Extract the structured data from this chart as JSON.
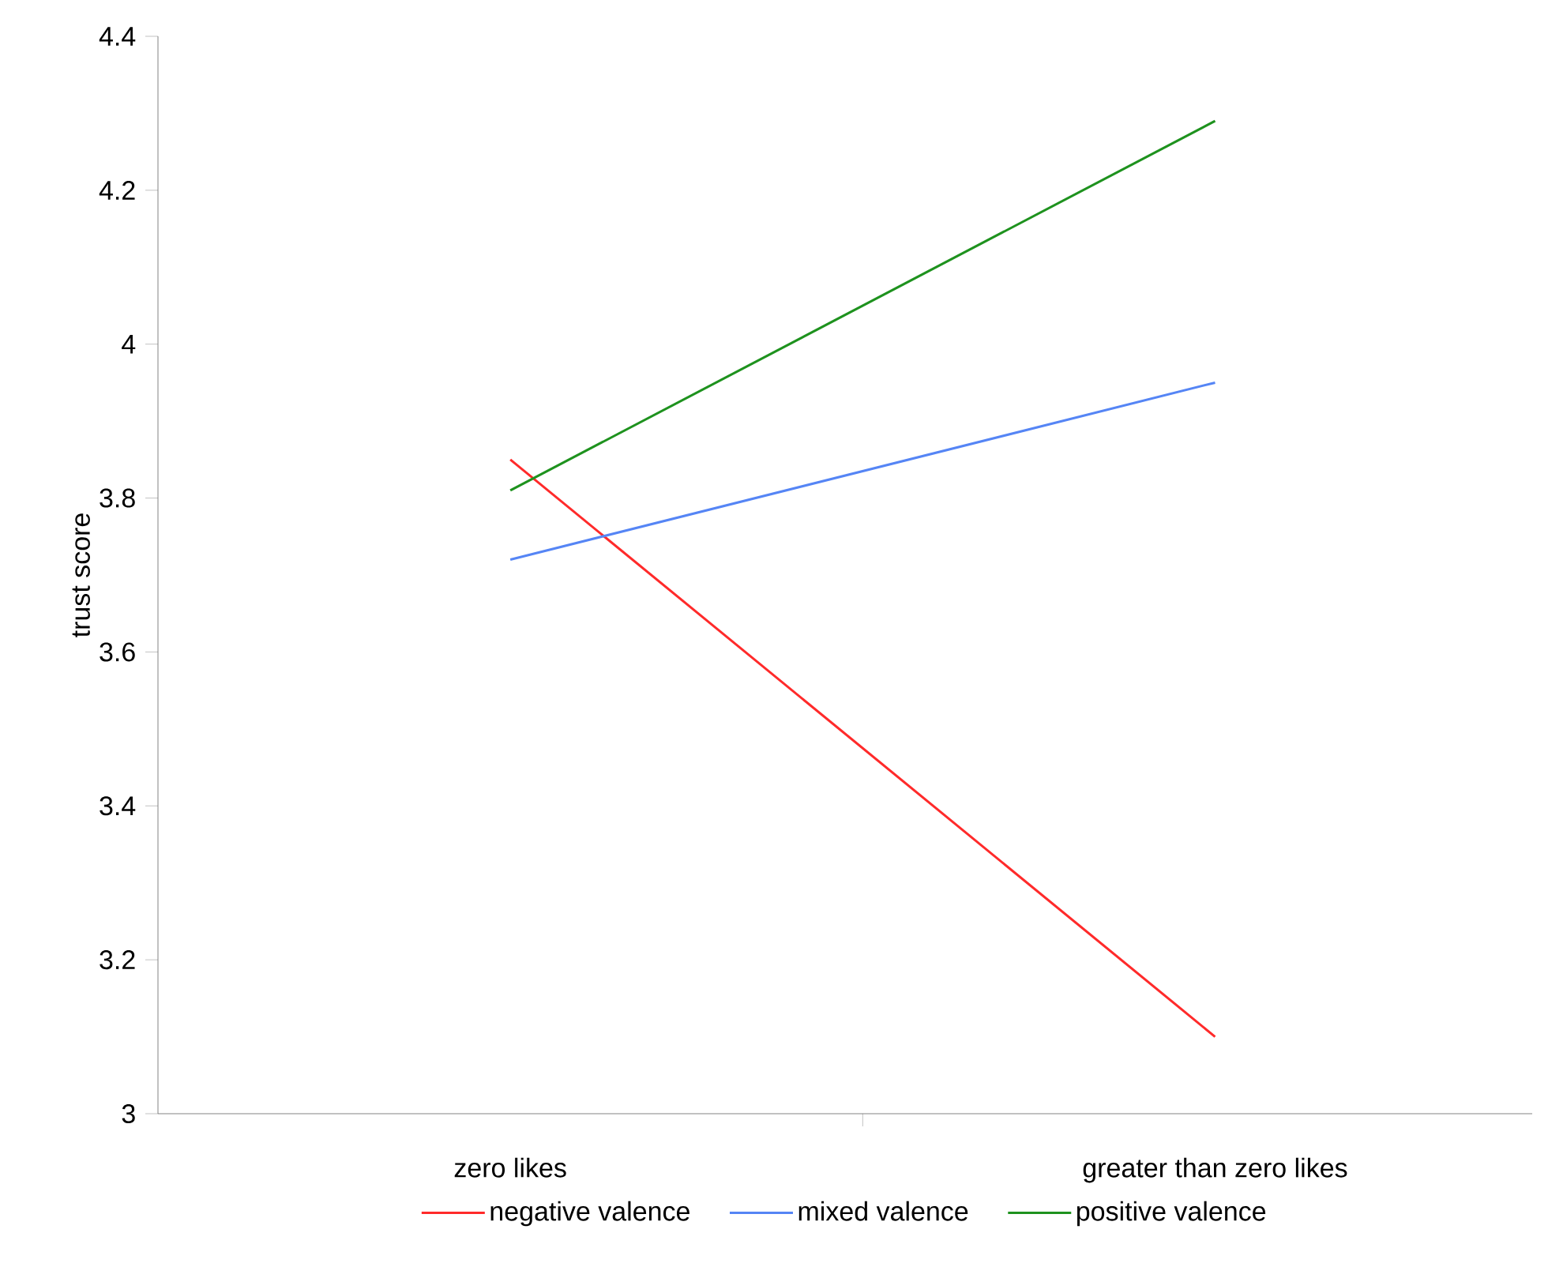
{
  "chart_data": {
    "type": "line",
    "ylabel": "trust score",
    "categories": [
      "zero likes",
      "greater than zero likes"
    ],
    "series": [
      {
        "name": "negative valence",
        "color": "#ff2a2a",
        "values": [
          3.85,
          3.1
        ]
      },
      {
        "name": "mixed valence",
        "color": "#5585f5",
        "values": [
          3.72,
          3.95
        ]
      },
      {
        "name": "positive valence",
        "color": "#1e921e",
        "values": [
          3.81,
          4.29
        ]
      }
    ],
    "ylim": [
      3,
      4.4
    ],
    "yticks": [
      3,
      3.2,
      3.4,
      3.6,
      3.8,
      4,
      4.2,
      4.4
    ],
    "legend": "bottom"
  }
}
